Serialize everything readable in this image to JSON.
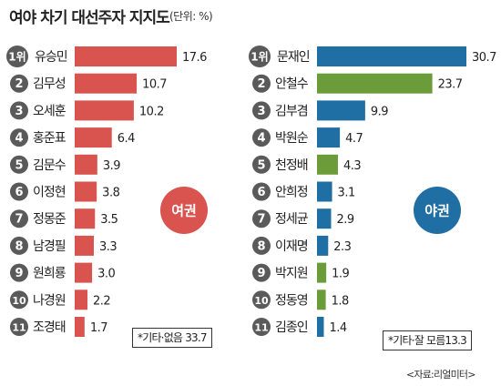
{
  "title": "여야 차기 대선주자 지지도",
  "unit": "(단위: %)",
  "source": "<자료:리얼미터>",
  "colors": {
    "ruling": "#d9534f",
    "opp_first": "#1f6ea4",
    "opp_green": "#6c9c3a",
    "opp_blue": "#1f6ea4",
    "rank_circle": "#5a5a5a"
  },
  "chart_data": [
    {
      "type": "bar",
      "orientation": "horizontal",
      "group_label": "여권",
      "note": "*기타·없음 33.7",
      "series": [
        {
          "categories": [
            "유승민",
            "김무성",
            "오세훈",
            "홍준표",
            "김문수",
            "이정현",
            "정몽준",
            "남경필",
            "원희룡",
            "나경원",
            "조경태"
          ],
          "ranks": [
            "1위",
            "2",
            "3",
            "4",
            "5",
            "6",
            "7",
            "8",
            "9",
            "10",
            "11"
          ],
          "values": [
            17.6,
            10.7,
            10.2,
            6.4,
            3.9,
            3.8,
            3.5,
            3.3,
            3.0,
            2.2,
            1.7
          ],
          "value_labels": [
            "17.6",
            "10.7",
            "10.2",
            "6.4",
            "3.9",
            "3.8",
            "3.5",
            "3.3",
            "3.0",
            "2.2",
            "1.7"
          ],
          "bar_colors": [
            "ruling",
            "ruling",
            "ruling",
            "ruling",
            "ruling",
            "ruling",
            "ruling",
            "ruling",
            "ruling",
            "ruling",
            "ruling"
          ]
        }
      ]
    },
    {
      "type": "bar",
      "orientation": "horizontal",
      "group_label": "야권",
      "note": "*기타·잘 모름13.3",
      "series": [
        {
          "categories": [
            "문재인",
            "안철수",
            "김부겸",
            "박원순",
            "천정배",
            "안희정",
            "정세균",
            "이재명",
            "박지원",
            "정동영",
            "김종인"
          ],
          "ranks": [
            "1위",
            "2",
            "3",
            "4",
            "5",
            "6",
            "7",
            "8",
            "9",
            "10",
            "11"
          ],
          "values": [
            30.7,
            23.7,
            9.9,
            4.7,
            4.3,
            3.1,
            2.9,
            2.3,
            1.9,
            1.8,
            1.4
          ],
          "value_labels": [
            "30.7",
            "23.7",
            "9.9",
            "4.7",
            "4.3",
            "3.1",
            "2.9",
            "2.3",
            "1.9",
            "1.8",
            "1.4"
          ],
          "bar_colors": [
            "opp_first",
            "opp_green",
            "opp_blue",
            "opp_blue",
            "opp_green",
            "opp_blue",
            "opp_blue",
            "opp_blue",
            "opp_green",
            "opp_green",
            "opp_blue"
          ]
        }
      ]
    }
  ]
}
